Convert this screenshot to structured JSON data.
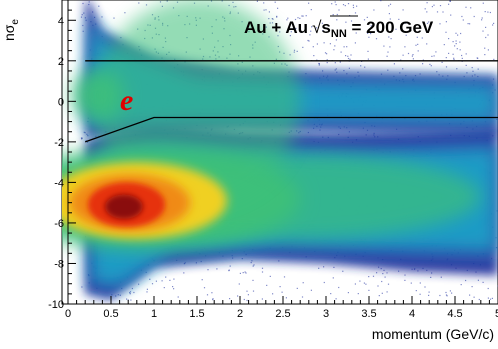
{
  "chart_data": {
    "type": "heatmap",
    "xlabel": "momentum (GeV/c)",
    "ylabel": "nσ",
    "ylabel_sub": "e",
    "xlim": [
      0,
      5
    ],
    "ylim": [
      -10,
      5
    ],
    "x_ticks": [
      "0",
      "0.5",
      "1",
      "1.5",
      "2",
      "2.5",
      "3",
      "3.5",
      "4",
      "4.5",
      "5"
    ],
    "x_tick_values": [
      0,
      0.5,
      1,
      1.5,
      2,
      2.5,
      3,
      3.5,
      4,
      4.5,
      5
    ],
    "y_ticks": [
      "-10",
      "-8",
      "-6",
      "-4",
      "-2",
      "0",
      "2",
      "4"
    ],
    "y_tick_values": [
      -10,
      -8,
      -6,
      -4,
      -2,
      0,
      2,
      4
    ],
    "colors": {
      "low": "#1a2a9a",
      "mid_low": "#1fa0c8",
      "mid": "#3cc07a",
      "mid_high": "#f0d020",
      "high": "#e63010",
      "peak": "#8a0a0a",
      "cut_line": "#000000",
      "electron_label": "#e00000"
    },
    "cut_upper": {
      "x": [
        0.2,
        5
      ],
      "y": [
        2,
        2
      ]
    },
    "cut_lower": {
      "x": [
        0.2,
        1.0,
        5
      ],
      "y": [
        -2,
        -0.8,
        -0.8
      ]
    },
    "bands": [
      {
        "name": "electron band",
        "x_range": [
          0.2,
          5
        ],
        "center": 0.0,
        "width": 1.0,
        "intensity": "moderate"
      },
      {
        "name": "hadron band",
        "x_range": [
          0.25,
          5
        ],
        "center_at_peak": -5.0,
        "peak_momentum": 0.65,
        "intensity": "high"
      }
    ],
    "annotations": {
      "system_prefix": "Au + Au",
      "sqrt_symbol": "√",
      "s_symbol": "s",
      "s_subscript": "NN",
      "system_suffix": " = 200 GeV",
      "particle_label": "e"
    }
  }
}
